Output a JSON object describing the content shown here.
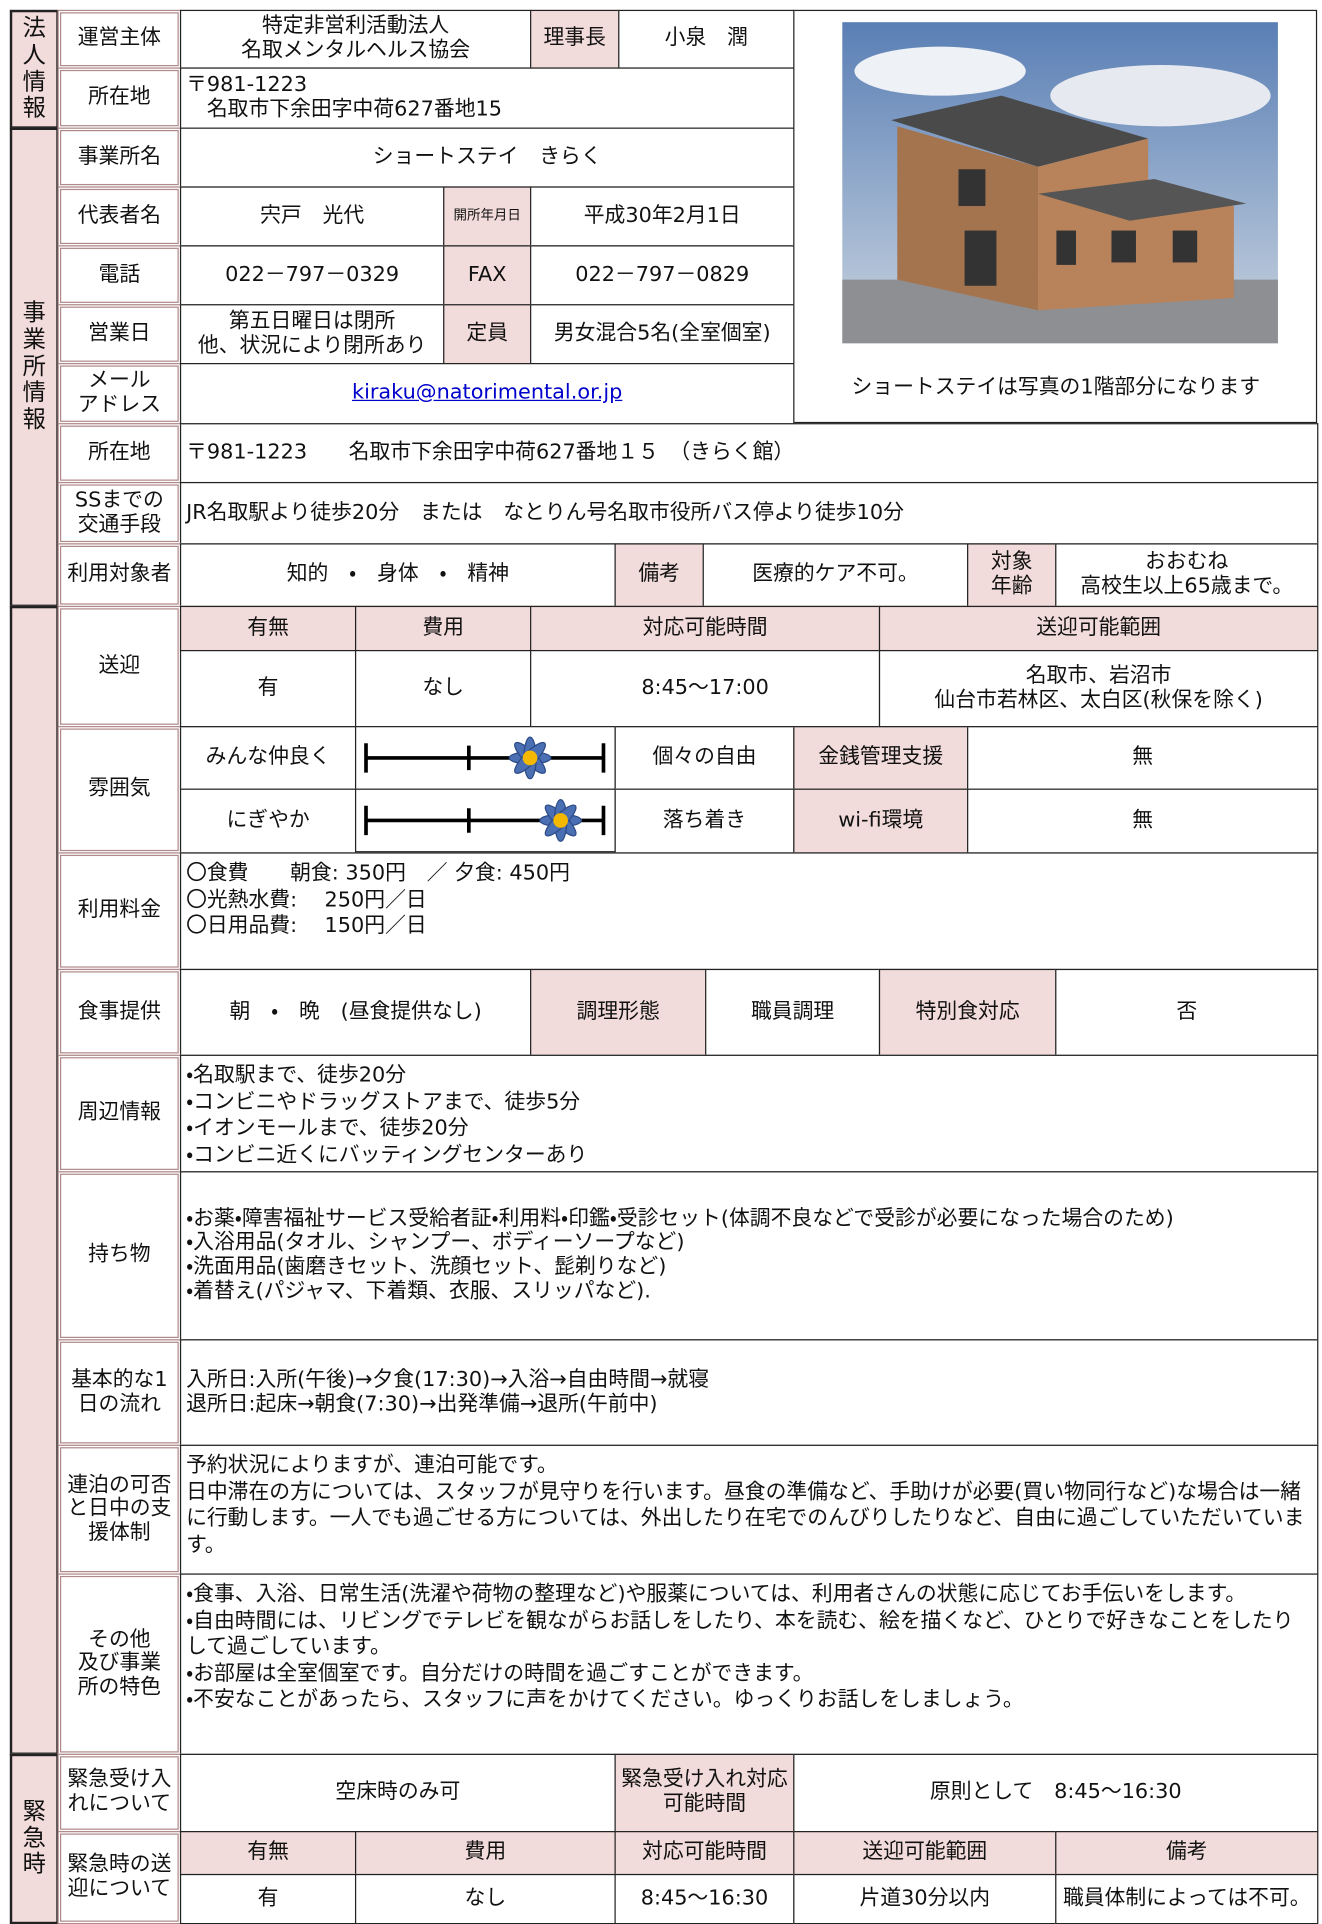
{
  "corporation": {
    "section": "法人情報",
    "operator_label": "運営主体",
    "operator": "特定非営利活動法人\n名取メンタルヘルス協会",
    "chair_label": "理事長",
    "chair": "小泉　潤",
    "address_label": "所在地",
    "address": "〒981-1223\n　名取市下余田字中荷627番地15"
  },
  "office": {
    "section": "事業所情報",
    "name_label": "事業所名",
    "name": "ショートステイ　きらく",
    "rep_label": "代表者名",
    "rep": "宍戸　光代",
    "opened_label": "開所年月日",
    "opened": "平成30年2月1日",
    "tel_label": "電話",
    "tel": "022－797－0329",
    "fax_label": "FAX",
    "fax": "022－797－0829",
    "days_label": "営業日",
    "days": "第五日曜日は閉所\n他、状況により閉所あり",
    "capacity_label": "定員",
    "capacity": "男女混合5名(全室個室)",
    "mail_label": "メール\nアドレス",
    "mail": "kiraku@natorimental.or.jp",
    "photo_caption": "ショートステイは写真の1階部分になります",
    "address_label": "所在地",
    "address": "〒981-1223　　名取市下余田字中荷627番地１５　（きらく館）",
    "access_label": "SSまでの\n交通手段",
    "access": "JR名取駅より徒歩20分　または　なとりん号名取市役所バス停より徒歩10分",
    "target_label": "利用対象者",
    "target": "知的　・　身体　・　精神",
    "note_label": "備考",
    "note": "医療的ケア不可。",
    "age_label": "対象\n年齢",
    "age": "おおむね\n高校生以上65歳まで。"
  },
  "service": {
    "transport": {
      "label": "送迎",
      "headers": [
        "有無",
        "費用",
        "対応可能時間",
        "送迎可能範囲"
      ],
      "values": [
        "有",
        "なし",
        "8:45～17:00",
        "名取市、岩沼市\n仙台市若林区、太白区(秋保を除く)"
      ]
    },
    "atmosphere": {
      "label": "雰囲気",
      "rows": [
        [
          "みんな仲良く",
          "個々の自由"
        ],
        [
          "にぎやか",
          "落ち着き"
        ]
      ],
      "money_label": "金銭管理支援",
      "money": "無",
      "wifi_label": "wi-fi環境",
      "wifi": "無"
    },
    "fee": {
      "label": "利用料金",
      "text": "〇食費　　朝食:  350円　／ 夕食:  450円\n〇光熱水費:　 250円／日\n〇日用品費:　 150円／日"
    },
    "meals": {
      "label": "食事提供",
      "value": "朝　・　晩　(昼食提供なし)",
      "cook_label": "調理形態",
      "cook": "職員調理",
      "special_label": "特別食対応",
      "special": "否"
    },
    "surroundings": {
      "label": "周辺情報",
      "text": "・名取駅まで、徒歩20分\n・コンビニやドラッグストアまで、徒歩5分\n・イオンモールまで、徒歩20分\n・コンビニ近くにバッティングセンターあり"
    },
    "belongings": {
      "label": "持ち物",
      "text": "・お薬・障害福祉サービス受給者証・利用料・印鑑・受診セット(体調不良などで受診が必要になった場合のため)\n・入浴用品(タオル、シャンプー、ボディーソープなど)\n・洗面用品(歯磨きセット、洗顔セット、髭剃りなど)\n・着替え(パジャマ、下着類、衣服、スリッパなど)."
    },
    "daily_flow": {
      "label": "基本的な1日の流れ",
      "text": "入所日:入所(午後)→夕食(17:30)→入浴→自由時間→就寝\n退所日:起床→朝食(7:30)→出発準備→退所(午前中)"
    },
    "consecutive": {
      "label": "連泊の可否と日中の支援体制",
      "text": "予約状況によりますが、連泊可能です。\n日中滞在の方については、スタッフが見守りを行います。昼食の準備など、手助けが必要(買い物同行など)な場合は一緒に行動します。一人でも過ごせる方については、外出したり在宅でのんびりしたりなど、自由に過ごしていただいています。"
    },
    "other": {
      "label": "その他\n及び事業\n所の特色",
      "text": "・食事、入浴、日常生活(洗濯や荷物の整理など)や服薬については、利用者さんの状態に応じてお手伝いをします。\n・自由時間には、リビングでテレビを観ながらお話しをしたり、本を読む、絵を描くなど、ひとりで好きなことをしたりして過ごしています。\n・お部屋は全室個室です。自分だけの時間を過ごすことができます。\n・不安なことがあったら、スタッフに声をかけてください。ゆっくりお話しをしましょう。"
    }
  },
  "emergency": {
    "section": "緊急時",
    "accept_label": "緊急受け入れについて",
    "accept": "空床時のみ可",
    "accept_time_label": "緊急受け入れ対応可能時間",
    "accept_time": "原則として　8:45～16:30",
    "transport_label": "緊急時の送迎について",
    "headers": [
      "有無",
      "費用",
      "対応可能時間",
      "送迎可能範囲",
      "備考"
    ],
    "values": [
      "有",
      "なし",
      "8:45～16:30",
      "片道30分以内",
      "職員体制によっては不可。"
    ]
  }
}
